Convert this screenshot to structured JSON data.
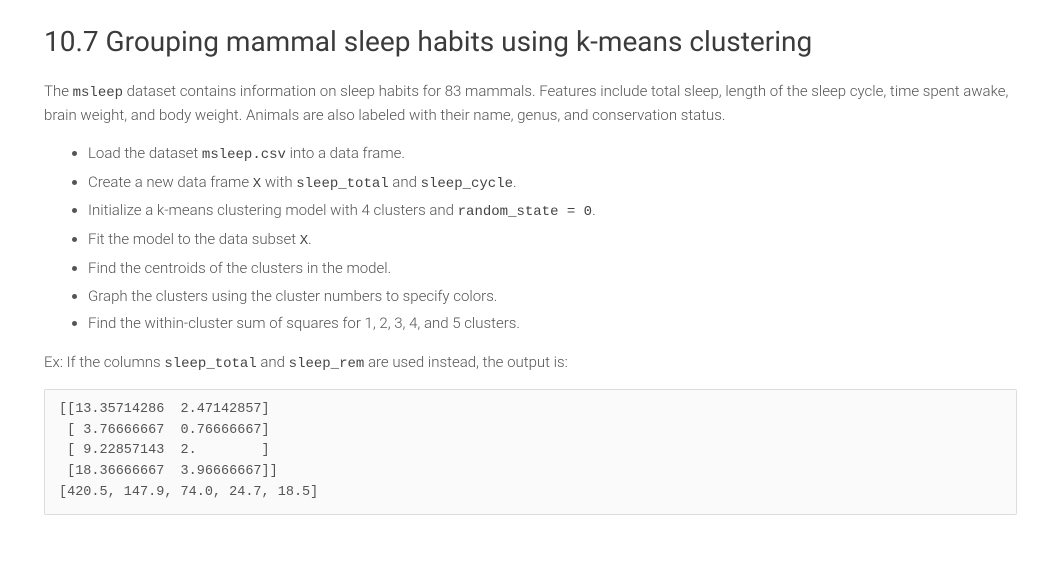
{
  "heading": "10.7 Grouping mammal sleep habits using k-means clustering",
  "intro": {
    "pre": "The ",
    "code1": "msleep",
    "post": " dataset contains information on sleep habits for 83 mammals. Features include total sleep, length of the sleep cycle, time spent awake, brain weight, and body weight. Animals are also labeled with their name, genus, and conservation status."
  },
  "steps": [
    {
      "pre": "Load the dataset ",
      "code": "msleep.csv",
      "post": " into a data frame."
    },
    {
      "pre": "Create a new data frame ",
      "code": "X",
      "mid": " with ",
      "code2": "sleep_total",
      "mid2": " and ",
      "code3": "sleep_cycle",
      "post": "."
    },
    {
      "pre": "Initialize a k-means clustering model with 4 clusters and ",
      "code": "random_state = 0",
      "post": "."
    },
    {
      "pre": "Fit the model to the data subset ",
      "code": "X",
      "post": "."
    },
    {
      "pre": "Find the centroids of the clusters in the model.",
      "code": "",
      "post": ""
    },
    {
      "pre": "Graph the clusters using the cluster numbers to specify colors.",
      "code": "",
      "post": ""
    },
    {
      "pre": "Find the within-cluster sum of squares for 1, 2, 3, 4, and 5 clusters.",
      "code": "",
      "post": ""
    }
  ],
  "example": {
    "pre": "Ex: If the columns ",
    "code1": "sleep_total",
    "mid": " and ",
    "code2": "sleep_rem",
    "post": " are used instead, the output is:"
  },
  "output": "[[13.35714286  2.47142857]\n [ 3.76666667  0.76666667]\n [ 9.22857143  2.        ]\n [18.36666667  3.96666667]]\n[420.5, 147.9, 74.0, 24.7, 18.5]"
}
